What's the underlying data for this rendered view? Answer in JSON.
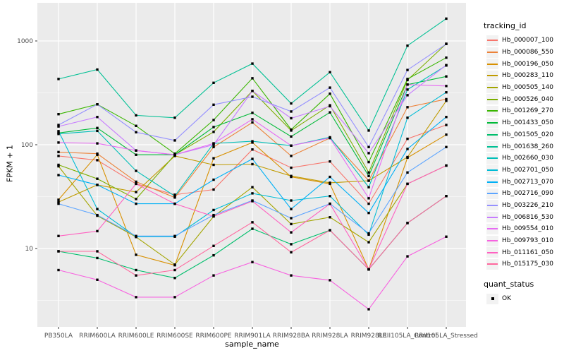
{
  "chart_data": {
    "type": "line",
    "title": "",
    "xlabel": "sample_name",
    "ylabel": "FPKM + 1",
    "y_scale": "log10",
    "y_ticks": [
      "10",
      "100",
      "1000"
    ],
    "y_minor_breaks_log10": [
      0.5,
      1.5,
      2.5
    ],
    "ylim_log10": [
      0.25,
      3.33
    ],
    "grid": "white major and minor gridlines on gray panel",
    "legend_position": "right",
    "panel_color": "#EBEBEB",
    "point_color": "#000000",
    "categories": [
      "PB350LA",
      "RRIM600LA",
      "RRIM600LE",
      "RRIM600SE",
      "RRIM600PE",
      "RRIM901LA",
      "RRIM928BA",
      "RRIM928LA",
      "RRIM928LE",
      "RRII105LA_Control",
      "RRII105LA_Stressed"
    ],
    "series": [
      {
        "name": "Hb_000007_100",
        "color": "#F8766D",
        "values": [
          78,
          71,
          42,
          33,
          37,
          90,
          60,
          69,
          27,
          114,
          155
        ]
      },
      {
        "name": "Hb_000086_550",
        "color": "#EC8239",
        "values": [
          85,
          82,
          44,
          31,
          95,
          164,
          78,
          116,
          45,
          230,
          275
        ]
      },
      {
        "name": "Hb_000196_050",
        "color": "#D89000",
        "values": [
          29.5,
          80,
          8.7,
          6.9,
          74,
          105,
          49,
          42,
          6.3,
          75,
          125
        ]
      },
      {
        "name": "Hb_000283_110",
        "color": "#C09B00",
        "values": [
          28,
          41,
          35,
          78,
          64,
          65,
          50,
          43,
          45,
          76,
          265
        ]
      },
      {
        "name": "Hb_000505_140",
        "color": "#A3A500",
        "values": [
          62,
          20.7,
          12.9,
          7,
          20.4,
          39,
          17.2,
          20,
          11.5,
          42,
          63
        ]
      },
      {
        "name": "Hb_000526_040",
        "color": "#7CAE00",
        "values": [
          64,
          47,
          30,
          80,
          133,
          330,
          137,
          240,
          54,
          420,
          940
        ]
      },
      {
        "name": "Hb_001269_270",
        "color": "#39B600",
        "values": [
          197,
          245,
          152,
          82,
          173,
          437,
          140,
          310,
          68,
          430,
          690
        ]
      },
      {
        "name": "Hb_001433_050",
        "color": "#00BA38",
        "values": [
          130,
          145,
          80,
          80,
          148,
          203,
          120,
          205,
          50,
          380,
          455
        ]
      },
      {
        "name": "Hb_001505_020",
        "color": "#00BE6C",
        "values": [
          9.4,
          8.1,
          6.2,
          5.2,
          8.6,
          15.5,
          11,
          15,
          6.3,
          17.6,
          32
        ]
      },
      {
        "name": "Hb_001638_260",
        "color": "#00C094",
        "values": [
          430,
          530,
          192,
          182,
          395,
          605,
          250,
          500,
          137,
          900,
          1640
        ]
      },
      {
        "name": "Hb_002660_030",
        "color": "#00BFB8",
        "values": [
          127,
          136,
          56,
          32,
          103,
          108,
          98,
          118,
          39,
          340,
          580
        ]
      },
      {
        "name": "Hb_002701_050",
        "color": "#00BCD6",
        "values": [
          135,
          24,
          13,
          13,
          23.5,
          34,
          29,
          32,
          13.6,
          182,
          320
        ]
      },
      {
        "name": "Hb_002713_070",
        "color": "#00B0F6",
        "values": [
          51,
          41,
          27,
          27,
          46,
          73,
          24,
          49,
          22,
          91,
          185
        ]
      },
      {
        "name": "Hb_002716_090",
        "color": "#5DA5FF",
        "values": [
          27,
          21,
          13.2,
          13.2,
          21,
          29,
          19.6,
          27,
          14,
          54,
          95
        ]
      },
      {
        "name": "Hb_003226_210",
        "color": "#9590FF",
        "values": [
          155,
          245,
          132,
          110,
          243,
          290,
          209,
          355,
          95,
          525,
          935
        ]
      },
      {
        "name": "Hb_006816_530",
        "color": "#C77CFF",
        "values": [
          150,
          185,
          88,
          80,
          100,
          330,
          180,
          235,
          83,
          300,
          585
        ]
      },
      {
        "name": "Hb_009554_010",
        "color": "#E76BF3",
        "values": [
          105,
          103,
          88,
          80,
          103,
          176,
          98,
          116,
          30.5,
          380,
          368
        ]
      },
      {
        "name": "Hb_009793_010",
        "color": "#F763E0",
        "values": [
          6.2,
          5.0,
          3.4,
          3.4,
          5.5,
          7.4,
          5.5,
          4.95,
          2.6,
          8.4,
          13
        ]
      },
      {
        "name": "Hb_011161_050",
        "color": "#FF61C1",
        "values": [
          13.2,
          14.7,
          42,
          27,
          20.4,
          28.6,
          14.3,
          27,
          6.3,
          42,
          63
        ]
      },
      {
        "name": "Hb_015175_030",
        "color": "#FF689E",
        "values": [
          9.4,
          9.4,
          5.5,
          6.2,
          10.6,
          17.9,
          9.2,
          15,
          6.3,
          17.6,
          32
        ]
      }
    ],
    "legend": {
      "color_title": "tracking_id",
      "shape_title": "quant_status",
      "shape_items": [
        {
          "label": "OK"
        }
      ]
    }
  }
}
